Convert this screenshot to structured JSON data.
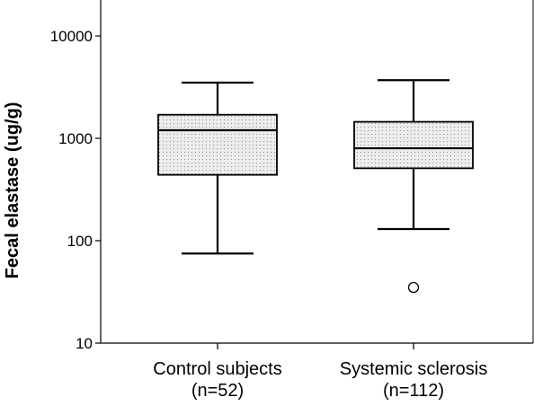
{
  "chart_data": {
    "type": "box",
    "ylabel": "Fecal elastase (ug/g)",
    "yscale": "log",
    "ylim": [
      10,
      15000
    ],
    "yticks": [
      10,
      100,
      1000,
      10000
    ],
    "ytick_labels": [
      "10",
      "100",
      "1000",
      "10000"
    ],
    "grid": false,
    "categories": [
      {
        "line1": "Control subjects",
        "line2": "(n=52)"
      },
      {
        "line1": "Systemic sclerosis",
        "line2": "(n=112)"
      }
    ],
    "boxes": [
      {
        "whisker_low": 75,
        "q1": 440,
        "median": 1200,
        "q3": 1700,
        "whisker_high": 3500,
        "outliers": []
      },
      {
        "whisker_low": 130,
        "q1": 510,
        "median": 800,
        "q3": 1450,
        "whisker_high": 3700,
        "outliers": [
          35
        ]
      }
    ],
    "box_fill": "dotted light gray",
    "colors": {
      "line": "#000000",
      "box_fill": "#e9e9e9",
      "dots": "#8a8a8a"
    }
  }
}
